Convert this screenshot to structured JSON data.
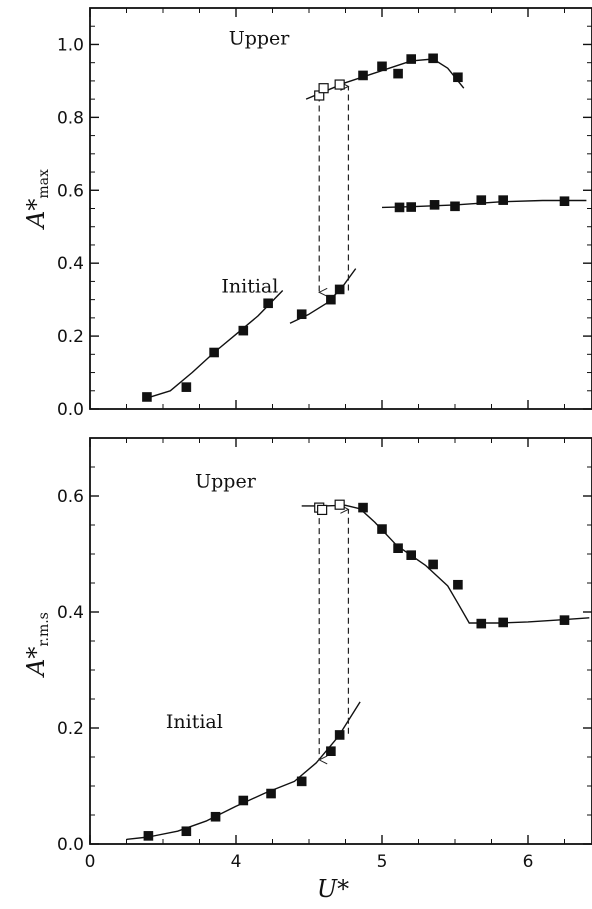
{
  "chart_data": [
    {
      "type": "scatter",
      "ylabel": "A*",
      "ylabel_sub": "max",
      "xlim": [
        3.0,
        6.45
      ],
      "ylim": [
        0.0,
        1.1
      ],
      "yticks": [
        "0.0",
        "0.2",
        "0.4",
        "0.6",
        "0.8",
        "1.0"
      ],
      "annotations": [
        {
          "text": "Upper",
          "x": 3.95,
          "y": 1.0
        },
        {
          "text": "Initial",
          "x": 3.9,
          "y": 0.32
        }
      ],
      "series": [
        {
          "marker": "filled-square",
          "x": [
            3.39,
            3.66,
            3.85,
            4.05,
            4.22
          ],
          "y": [
            0.033,
            0.06,
            0.155,
            0.215,
            0.29
          ]
        },
        {
          "marker": "filled-square",
          "x": [
            4.45,
            4.65,
            4.71
          ],
          "y": [
            0.26,
            0.3,
            0.328
          ]
        },
        {
          "marker": "open-square",
          "x": [
            4.57,
            4.6,
            4.71
          ],
          "y": [
            0.86,
            0.88,
            0.89
          ]
        },
        {
          "marker": "filled-square",
          "x": [
            4.87,
            5.0,
            5.11,
            5.2,
            5.35,
            5.52
          ],
          "y": [
            0.915,
            0.94,
            0.92,
            0.96,
            0.962,
            0.91
          ]
        },
        {
          "marker": "filled-square",
          "x": [
            5.12,
            5.2,
            5.36,
            5.5,
            5.68,
            5.83,
            6.25
          ],
          "y": [
            0.553,
            0.554,
            0.56,
            0.556,
            0.573,
            0.573,
            0.57
          ]
        }
      ],
      "curves": [
        {
          "x": [
            3.39,
            3.55,
            3.7,
            3.85,
            4.0,
            4.15,
            4.32
          ],
          "y": [
            0.03,
            0.05,
            0.1,
            0.155,
            0.205,
            0.255,
            0.325
          ]
        },
        {
          "x": [
            4.37,
            4.5,
            4.62,
            4.72,
            4.82
          ],
          "y": [
            0.235,
            0.26,
            0.29,
            0.33,
            0.385
          ]
        },
        {
          "x": [
            4.48,
            4.6,
            4.75,
            4.9,
            5.05,
            5.2,
            5.35,
            5.45,
            5.56
          ],
          "y": [
            0.85,
            0.87,
            0.895,
            0.915,
            0.935,
            0.955,
            0.96,
            0.935,
            0.88
          ]
        },
        {
          "x": [
            5.0,
            5.2,
            5.5,
            5.8,
            6.1,
            6.4
          ],
          "y": [
            0.553,
            0.555,
            0.56,
            0.568,
            0.572,
            0.572
          ]
        }
      ],
      "arrows": [
        {
          "x": 4.57,
          "from": 0.86,
          "to": 0.32
        },
        {
          "x": 4.77,
          "from": 0.325,
          "to": 0.885
        }
      ]
    },
    {
      "type": "scatter",
      "ylabel": "A*",
      "ylabel_sub": "r.m.s",
      "xlabel": "U*",
      "xlim": [
        3.0,
        6.45
      ],
      "ylim": [
        0.0,
        0.7
      ],
      "xticks": [
        "0",
        "4",
        "5",
        "6"
      ],
      "yticks": [
        "0.0",
        "0.2",
        "0.4",
        "0.6"
      ],
      "annotations": [
        {
          "text": "Upper",
          "x": 3.72,
          "y": 0.615
        },
        {
          "text": "Initial",
          "x": 3.52,
          "y": 0.2
        }
      ],
      "series": [
        {
          "marker": "filled-square",
          "x": [
            3.4,
            3.66,
            3.86,
            4.05,
            4.24,
            4.45,
            4.65,
            4.71
          ],
          "y": [
            0.014,
            0.022,
            0.047,
            0.075,
            0.087,
            0.108,
            0.16,
            0.188
          ]
        },
        {
          "marker": "open-square",
          "x": [
            4.57,
            4.59,
            4.71
          ],
          "y": [
            0.58,
            0.576,
            0.585
          ]
        },
        {
          "marker": "filled-square",
          "x": [
            4.87,
            5.0,
            5.11,
            5.2,
            5.35,
            5.52
          ],
          "y": [
            0.58,
            0.543,
            0.51,
            0.498,
            0.482,
            0.447
          ]
        },
        {
          "marker": "filled-square",
          "x": [
            5.68,
            5.83,
            6.25
          ],
          "y": [
            0.38,
            0.382,
            0.386
          ]
        }
      ],
      "curves": [
        {
          "x": [
            3.25,
            3.4,
            3.6,
            3.8,
            4.0,
            4.2,
            4.4,
            4.55,
            4.7,
            4.85
          ],
          "y": [
            0.008,
            0.012,
            0.022,
            0.04,
            0.065,
            0.088,
            0.108,
            0.14,
            0.185,
            0.245
          ]
        },
        {
          "x": [
            4.45,
            4.6,
            4.75,
            4.85,
            4.95,
            5.1,
            5.3,
            5.45,
            5.52,
            5.6
          ],
          "y": [
            0.583,
            0.583,
            0.584,
            0.578,
            0.555,
            0.515,
            0.48,
            0.445,
            0.415,
            0.38
          ]
        },
        {
          "x": [
            5.6,
            5.8,
            6.0,
            6.2,
            6.42
          ],
          "y": [
            0.381,
            0.381,
            0.383,
            0.386,
            0.39
          ]
        }
      ],
      "arrows": [
        {
          "x": 4.57,
          "from": 0.579,
          "to": 0.145
        },
        {
          "x": 4.77,
          "from": 0.19,
          "to": 0.577
        }
      ]
    }
  ]
}
